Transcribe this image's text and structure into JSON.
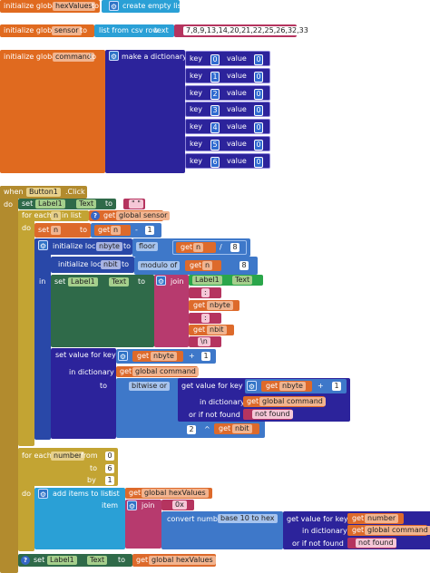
{
  "block1": {
    "init_label": "initialize global",
    "var_name": "hexValues",
    "to_label": "to",
    "value_label": "create empty list"
  },
  "block2": {
    "init_label": "initialize global",
    "var_name": "sensor",
    "to_label": "to",
    "func_label": "list from csv row",
    "text_label": "text",
    "csv_text": "7,8,9,13,14,20,21,22,25,26,32,33"
  },
  "block3": {
    "init_label": "initialize global",
    "var_name": "command",
    "to_label": "to",
    "func_label": "make a dictionary",
    "key_label": "key",
    "value_label": "value",
    "pairs": [
      {
        "key": "0",
        "value": "0"
      },
      {
        "key": "1",
        "value": "0"
      },
      {
        "key": "2",
        "value": "0"
      },
      {
        "key": "3",
        "value": "0"
      },
      {
        "key": "4",
        "value": "0"
      },
      {
        "key": "5",
        "value": "0"
      },
      {
        "key": "6",
        "value": "0"
      }
    ]
  },
  "event": {
    "when": "when",
    "component": "Button1",
    "event": ".Click",
    "do": "do",
    "set": "set",
    "label_comp": "Label1",
    "prop": "Text",
    "to": "to",
    "empty_str": "\" \"",
    "foreach_n": "for each",
    "n_var": "n",
    "in_list": "in list",
    "get": "get",
    "global_sensor": "global sensor",
    "do2": "do",
    "set_n": "set",
    "n_var2": "n",
    "to2": "to",
    "minus": "-",
    "one": "1",
    "init_local": "initialize local",
    "nbyte": "nbyte",
    "to3": "to",
    "floor": "floor",
    "div": "/",
    "eight": "8",
    "init_local2": "initialize local",
    "nbit": "nbit",
    "to4": "to",
    "modulo": "modulo of",
    "eight2": "8",
    "in_label": "in",
    "join": "join",
    "colon": ":",
    "nbyte_get": "nbyte",
    "nbit_get": "nbit",
    "newline": "\\n",
    "set_value_for_key": "set value for key",
    "nbyte_get2": "nbyte",
    "plus": "+",
    "one2": "1",
    "in_dictionary": "in dictionary",
    "global_command": "global command",
    "to5": "to",
    "bitwise": "bitwise or",
    "get_value_for_key": "get value for key",
    "nbyte_get3": "nbyte",
    "plus2": "+",
    "one3": "1",
    "in_dictionary2": "in dictionary",
    "global_command2": "global command",
    "or_if_not_found": "or if not found",
    "not_found": "not found",
    "two": "2",
    "caret": "^",
    "nbit_get2": "nbit",
    "foreach_number": "for each",
    "number_var": "number",
    "from": "from",
    "from_val": "0",
    "to6": "to",
    "to_val": "6",
    "by": "by",
    "by_val": "1",
    "do3": "do",
    "add_items": "add items to list",
    "list": "list",
    "global_hex": "global hexValues",
    "item": "item",
    "join2": "join",
    "ox": "0x",
    "convert": "convert number",
    "base": "base 10 to hex",
    "get_value_for_key2": "get value for key",
    "number_get": "number",
    "in_dictionary3": "in dictionary",
    "global_command3": "global command",
    "or_if_not_found2": "or if not found",
    "not_found2": "not found",
    "set_final": "set",
    "label_comp2": "Label1",
    "prop2": "Text",
    "to7": "to",
    "global_hex2": "global hexValues"
  }
}
